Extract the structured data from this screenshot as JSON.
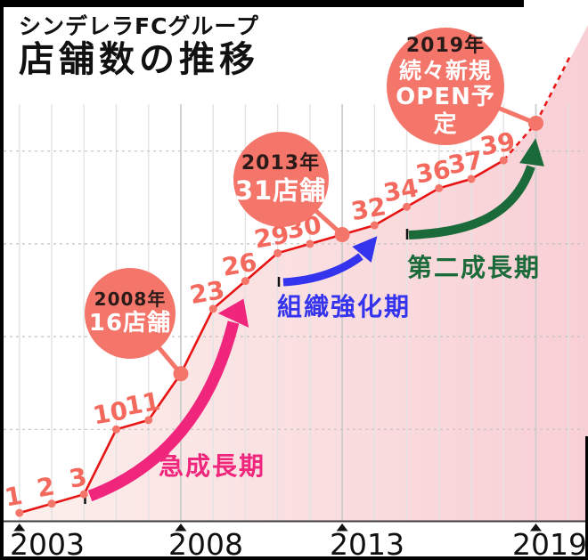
{
  "header": {
    "brand": "シンデレラFCグループ",
    "title": "店舗数の推移"
  },
  "chart_data": {
    "type": "line",
    "title": "店舗数の推移",
    "subtitle": "シンデレラFCグループ",
    "x_range": [
      2003,
      2020
    ],
    "ylim": [
      0,
      45
    ],
    "y_gridline_values": [
      10,
      20,
      30,
      40
    ],
    "grid": "vertical solid line per year; horizontal dotted line per 10 stores; no y tick labels",
    "points": [
      {
        "year": 2003,
        "value": 1,
        "label": "1"
      },
      {
        "year": 2004,
        "value": 2,
        "label": "2"
      },
      {
        "year": 2005,
        "value": 3,
        "label": "3"
      },
      {
        "year": 2006,
        "value": 10,
        "label": "10"
      },
      {
        "year": 2007,
        "value": 11,
        "label": "11"
      },
      {
        "year": 2008,
        "value": 16,
        "label": null,
        "emphasis": true
      },
      {
        "year": 2009,
        "value": 23,
        "label": "23"
      },
      {
        "year": 2010,
        "value": 26,
        "label": "26"
      },
      {
        "year": 2011,
        "value": 29,
        "label": "29"
      },
      {
        "year": 2012,
        "value": 30,
        "label": "30"
      },
      {
        "year": 2013,
        "value": 31,
        "label": null,
        "emphasis": true
      },
      {
        "year": 2014,
        "value": 32,
        "label": "32"
      },
      {
        "year": 2015,
        "value": 34,
        "label": "34"
      },
      {
        "year": 2016,
        "value": 36,
        "label": "36"
      },
      {
        "year": 2017,
        "value": 37,
        "label": "37"
      },
      {
        "year": 2018,
        "value": 39,
        "label": "39"
      },
      {
        "year": 2019,
        "value": 43,
        "label": null,
        "emphasis": true,
        "projected": true
      }
    ],
    "x_axis_labels": [
      "2003",
      "2008",
      "2013",
      "2019"
    ],
    "axis_marker_years": [
      2003,
      2008,
      2013,
      2019
    ],
    "annotations": [
      {
        "id": "2008",
        "line1": "2008年",
        "line2": "16店舗",
        "target_year": 2008,
        "target_value": 16
      },
      {
        "id": "2013",
        "line1": "2013年",
        "line2": "31店舗",
        "target_year": 2013,
        "target_value": 31
      },
      {
        "id": "2019",
        "line1": "2019年",
        "line2": "続々新規",
        "line3": "OPEN予定",
        "target_year": 2019,
        "target_value": 43
      }
    ],
    "phases": [
      {
        "label": "急成長期",
        "color": "#f0257c"
      },
      {
        "label": "組織強化期",
        "color": "#3434ee"
      },
      {
        "label": "第二成長期",
        "color": "#1a6b39"
      }
    ],
    "colors": {
      "line": "#e81414",
      "point": "#f4756a",
      "point_label": "#f4695e",
      "annotation_circle": "#f4756a",
      "annotation_title": "#2a1b18",
      "annotation_value": "#ffffff",
      "area_fill_left": "#fcefec",
      "area_fill_right": "#f8cfd5",
      "grid_vertical": "#e3e3e3",
      "grid_vertical_major": "#cdcdcd",
      "grid_horizontal": "#c2c2c2",
      "axis": "#3c3c3c",
      "axis_label": "#101010",
      "tick_mark": "#111111"
    }
  }
}
